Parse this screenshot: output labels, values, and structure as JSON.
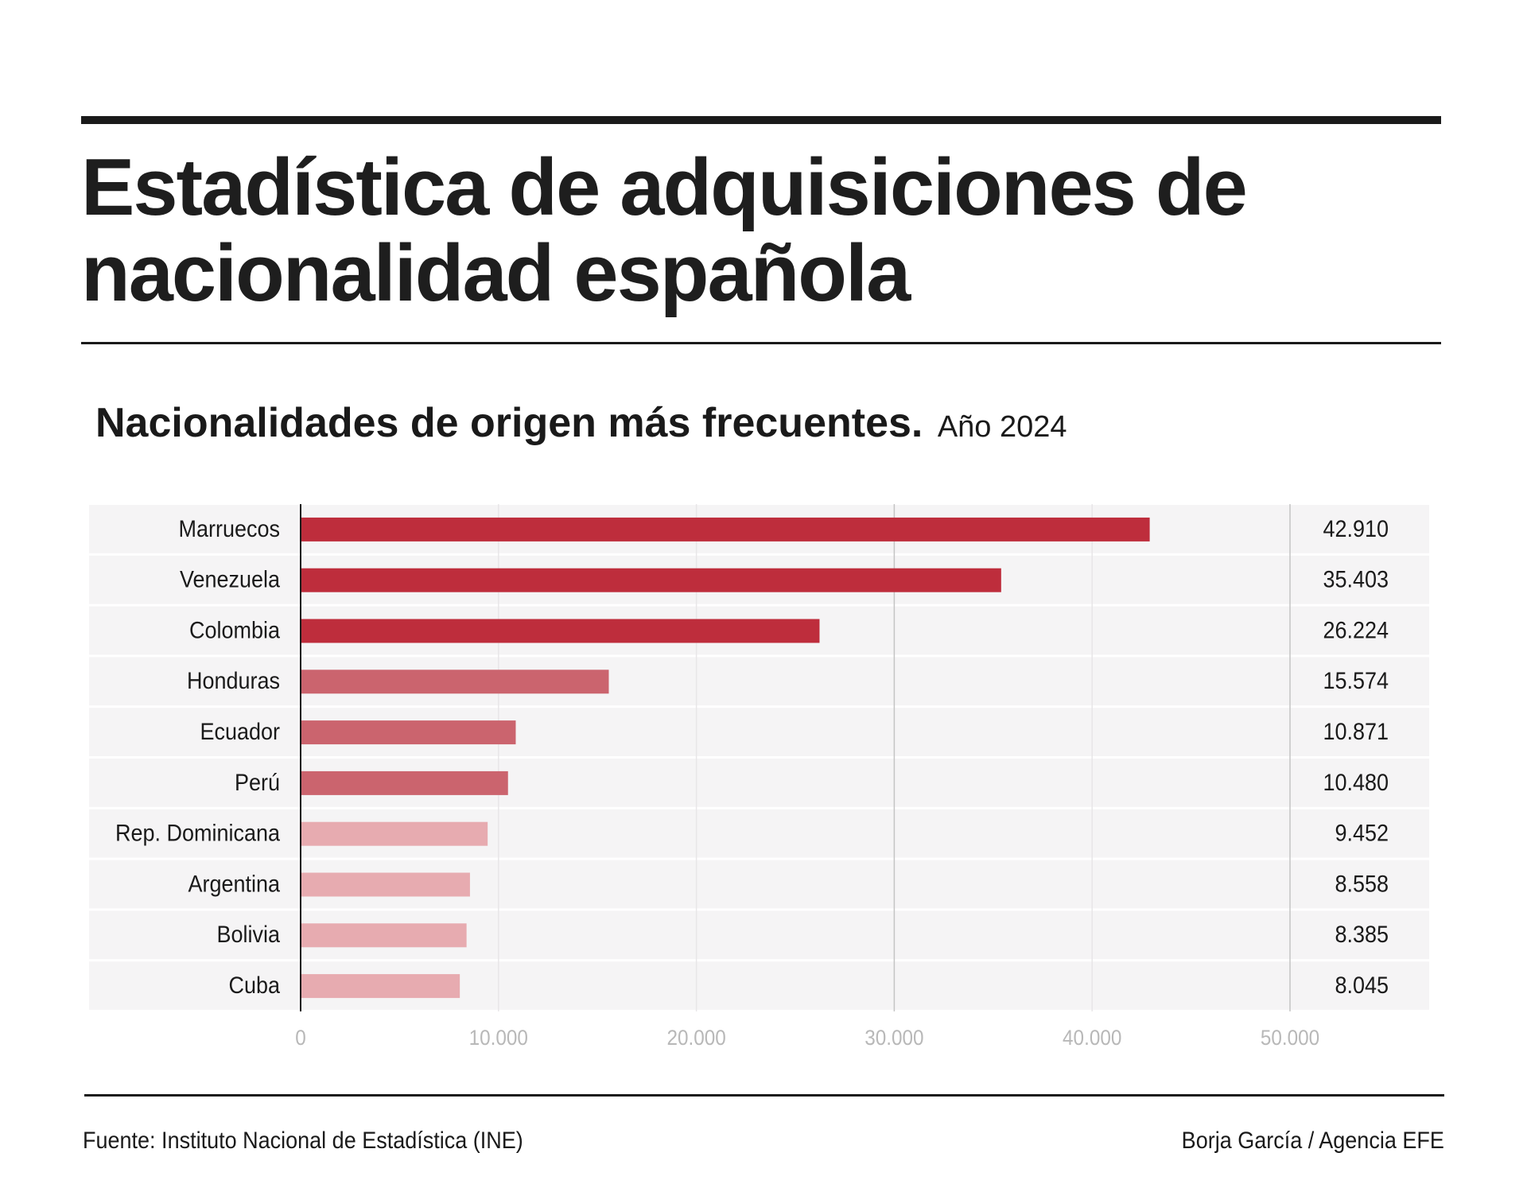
{
  "header": {
    "title": "Estadística de adquisiciones de nacionalidad española"
  },
  "chart_data": {
    "type": "bar",
    "orientation": "horizontal",
    "title": "Nacionalidades de origen más frecuentes.",
    "subtitle": "Año 2024",
    "categories": [
      "Marruecos",
      "Venezuela",
      "Colombia",
      "Honduras",
      "Ecuador",
      "Perú",
      "Rep. Dominicana",
      "Argentina",
      "Bolivia",
      "Cuba"
    ],
    "values": [
      42910,
      35403,
      26224,
      15574,
      10871,
      10480,
      9452,
      8558,
      8385,
      8045
    ],
    "value_labels": [
      "42.910",
      "35.403",
      "26.224",
      "15.574",
      "10.871",
      "10.480",
      "9.452",
      "8.558",
      "8.385",
      "8.045"
    ],
    "bar_colors": [
      "#be2d3c",
      "#be2d3c",
      "#be2d3c",
      "#cb646e",
      "#cb646e",
      "#cb646e",
      "#e7abb0",
      "#e7abb0",
      "#e7abb0",
      "#e7abb0"
    ],
    "xlim": [
      0,
      50000
    ],
    "xticks": [
      0,
      10000,
      20000,
      30000,
      40000,
      50000
    ],
    "xtick_labels": [
      "0",
      "10.000",
      "20.000",
      "30.000",
      "40.000",
      "50.000"
    ],
    "xlabel": "",
    "ylabel": "",
    "grid": true,
    "legend": "none"
  },
  "colors": {
    "panel_bg": "#f5f4f5",
    "tick_text": "#b8b8b8",
    "grid_line": "#e8e6e8",
    "grid_line_major": "#c4c4c4"
  },
  "footer": {
    "source": "Fuente: Instituto Nacional de Estadística (INE)",
    "credit": "Borja García / Agencia EFE"
  }
}
